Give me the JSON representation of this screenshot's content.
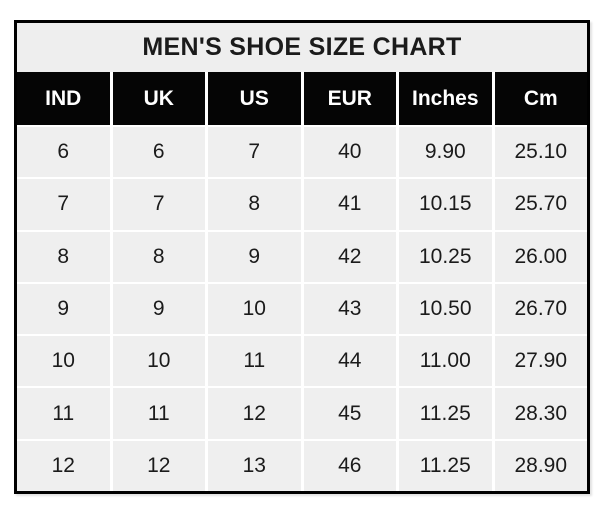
{
  "colors": {
    "page_bg": "#ffffff",
    "panel_bg": "#eeeeee",
    "header_bg": "#050505",
    "header_text": "#ffffff",
    "cell_bg": "#efefef",
    "cell_text": "#1b1b1b",
    "grid_line": "#ffffff",
    "border": "#000000"
  },
  "chart_data": {
    "type": "table",
    "title": "MEN'S SHOE SIZE CHART",
    "columns": [
      "IND",
      "UK",
      "US",
      "EUR",
      "Inches",
      "Cm"
    ],
    "rows": [
      [
        "6",
        "6",
        "7",
        "40",
        "9.90",
        "25.10"
      ],
      [
        "7",
        "7",
        "8",
        "41",
        "10.15",
        "25.70"
      ],
      [
        "8",
        "8",
        "9",
        "42",
        "10.25",
        "26.00"
      ],
      [
        "9",
        "9",
        "10",
        "43",
        "10.50",
        "26.70"
      ],
      [
        "10",
        "10",
        "11",
        "44",
        "11.00",
        "27.90"
      ],
      [
        "11",
        "11",
        "12",
        "45",
        "11.25",
        "28.30"
      ],
      [
        "12",
        "12",
        "13",
        "46",
        "11.25",
        "28.90"
      ]
    ]
  }
}
